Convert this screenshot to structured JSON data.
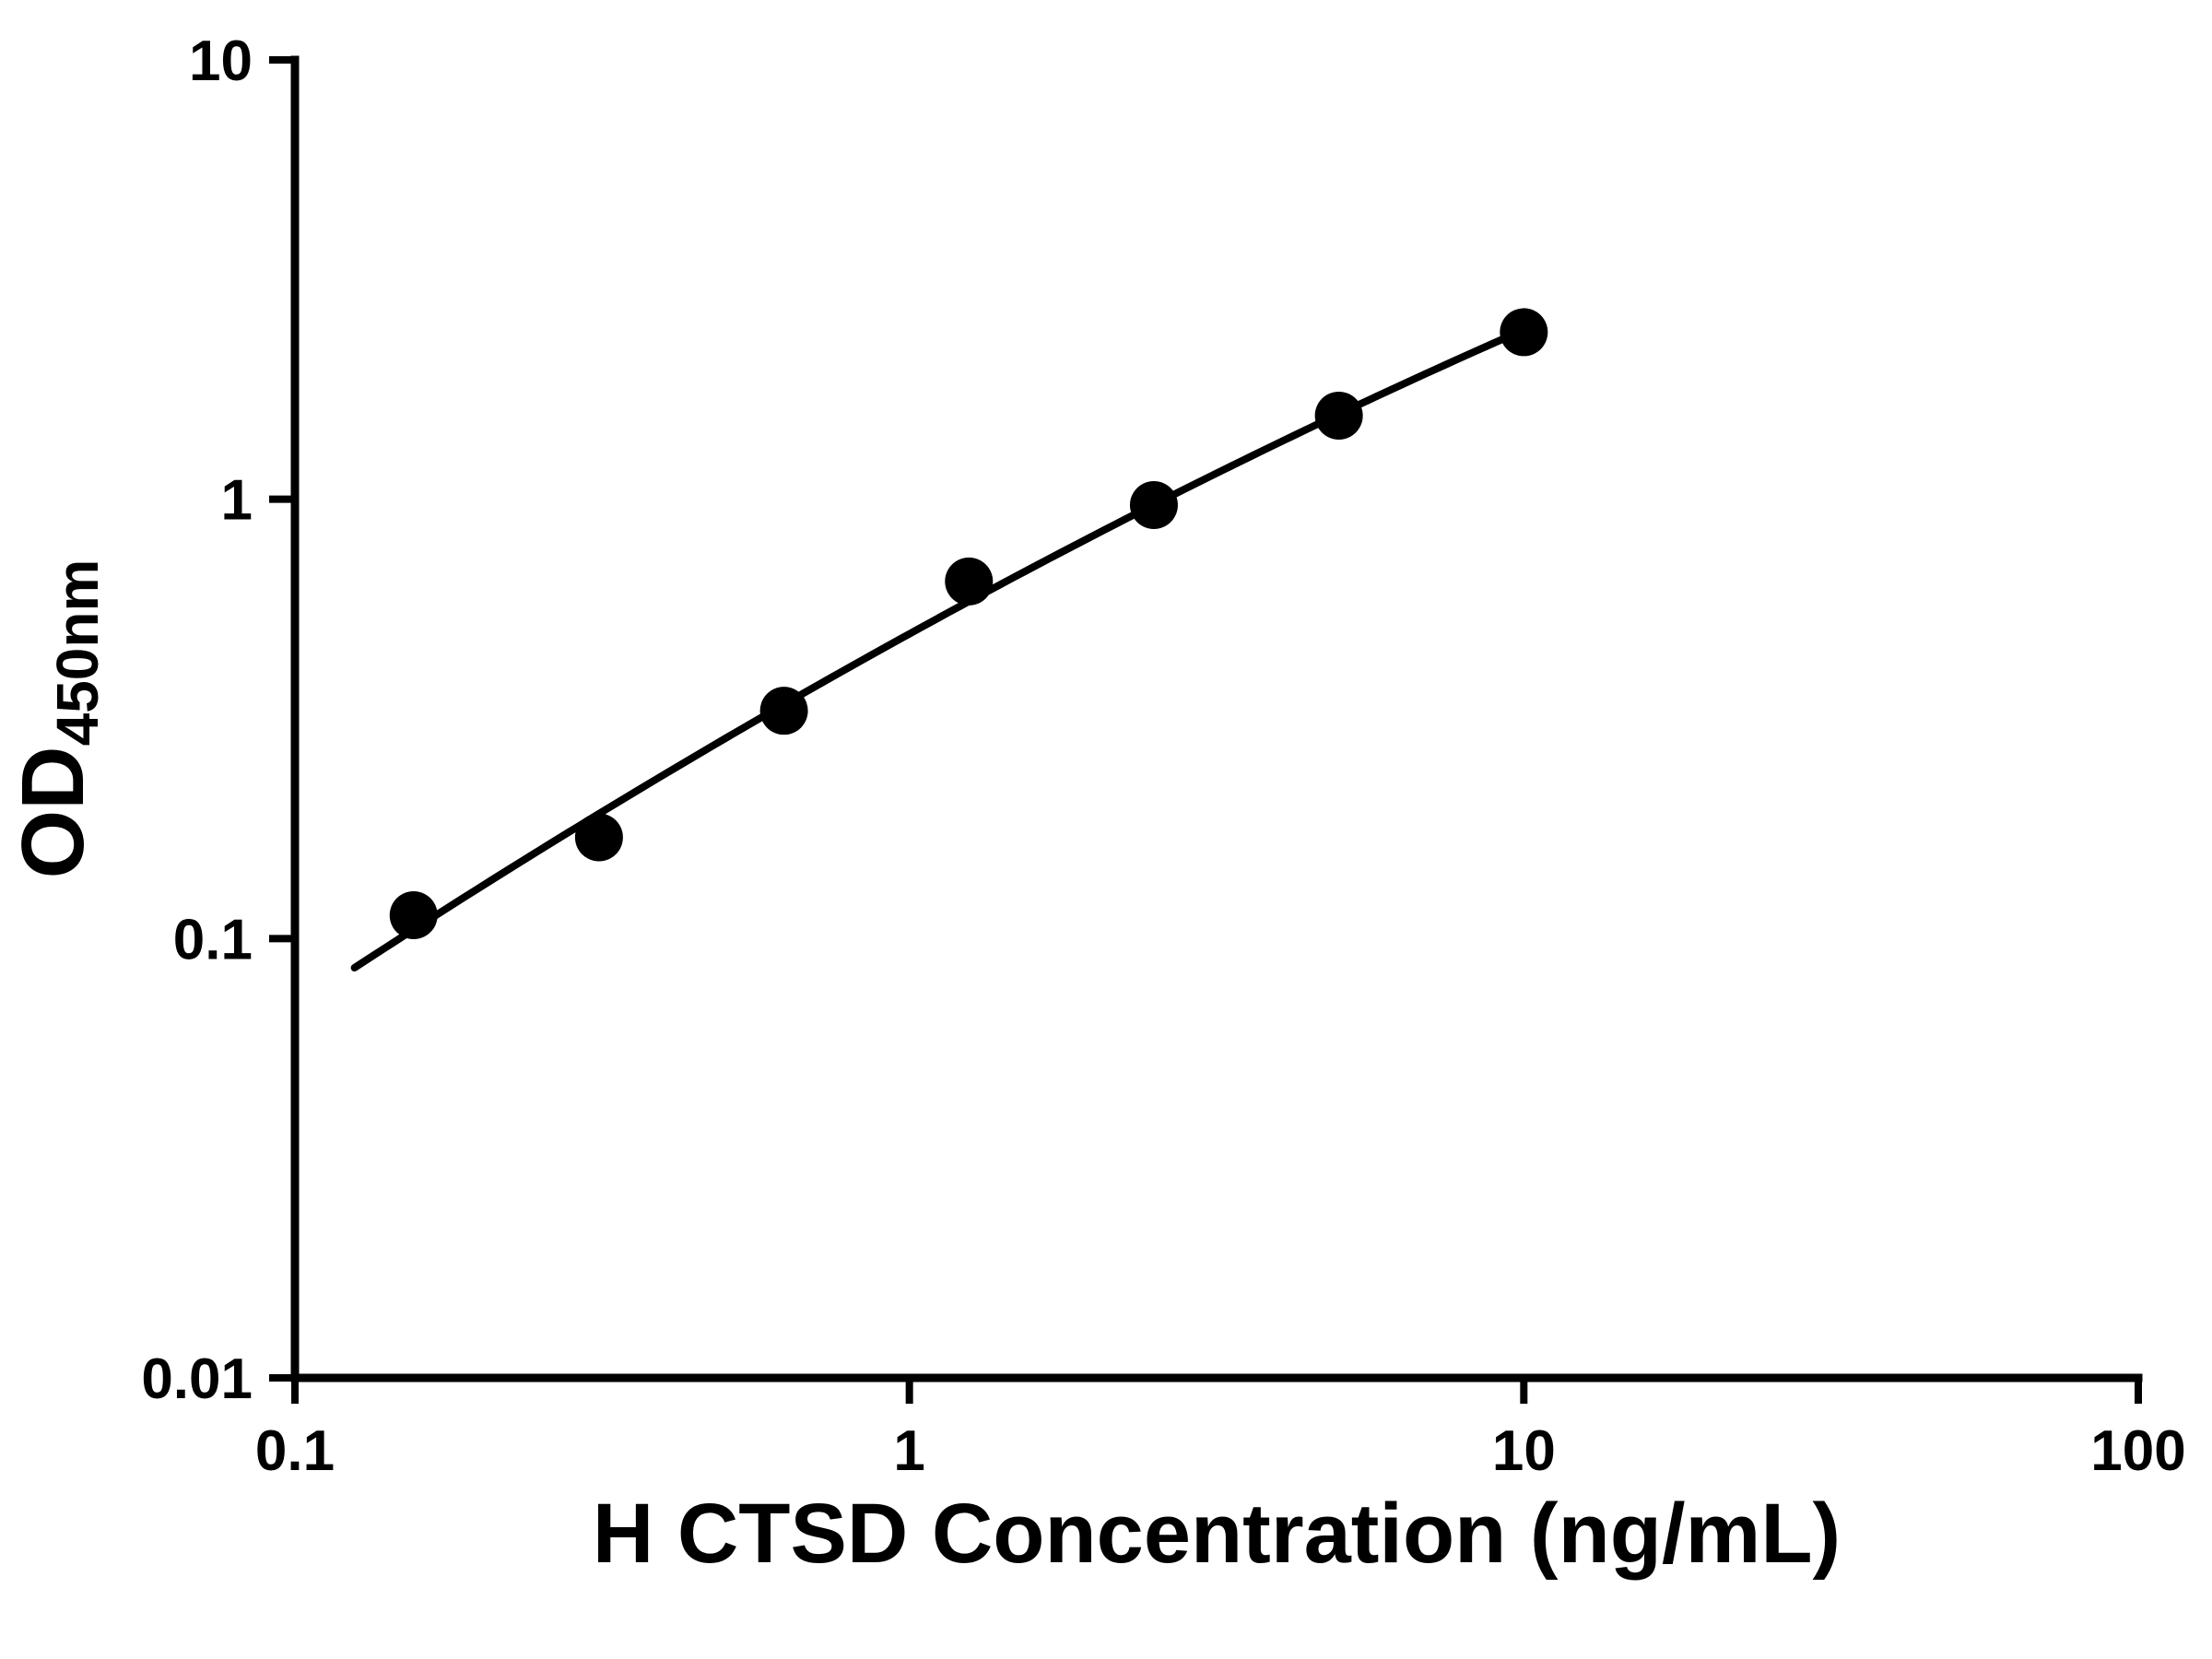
{
  "chart_data": {
    "type": "scatter",
    "title": "",
    "xlabel": "H CTSD Concentration (ng/mL)",
    "ylabel": "OD450nm",
    "ylabel_main": "OD",
    "ylabel_sub": "450nm",
    "x_scale": "log",
    "y_scale": "log",
    "xlim": [
      0.1,
      100
    ],
    "ylim": [
      0.01,
      10
    ],
    "grid": false,
    "legend": "none",
    "axis_color": "#000000",
    "marker_color": "#000000",
    "curve_color": "#000000",
    "x_ticks": [
      {
        "value": 0.1,
        "label": "0.1"
      },
      {
        "value": 1,
        "label": "1"
      },
      {
        "value": 10,
        "label": "10"
      },
      {
        "value": 100,
        "label": "100"
      }
    ],
    "y_ticks": [
      {
        "value": 0.01,
        "label": "0.01"
      },
      {
        "value": 0.1,
        "label": "0.1"
      },
      {
        "value": 1,
        "label": "1"
      },
      {
        "value": 10,
        "label": "10"
      }
    ],
    "points": [
      {
        "x": 0.156,
        "y": 0.113
      },
      {
        "x": 0.3125,
        "y": 0.17
      },
      {
        "x": 0.625,
        "y": 0.33
      },
      {
        "x": 1.25,
        "y": 0.65
      },
      {
        "x": 2.5,
        "y": 0.97
      },
      {
        "x": 5,
        "y": 1.55
      },
      {
        "x": 10,
        "y": 2.4
      }
    ],
    "fit_curve": {
      "model": "quadratic-loglog",
      "x_start": 0.125,
      "x_end": 10.0
    }
  }
}
